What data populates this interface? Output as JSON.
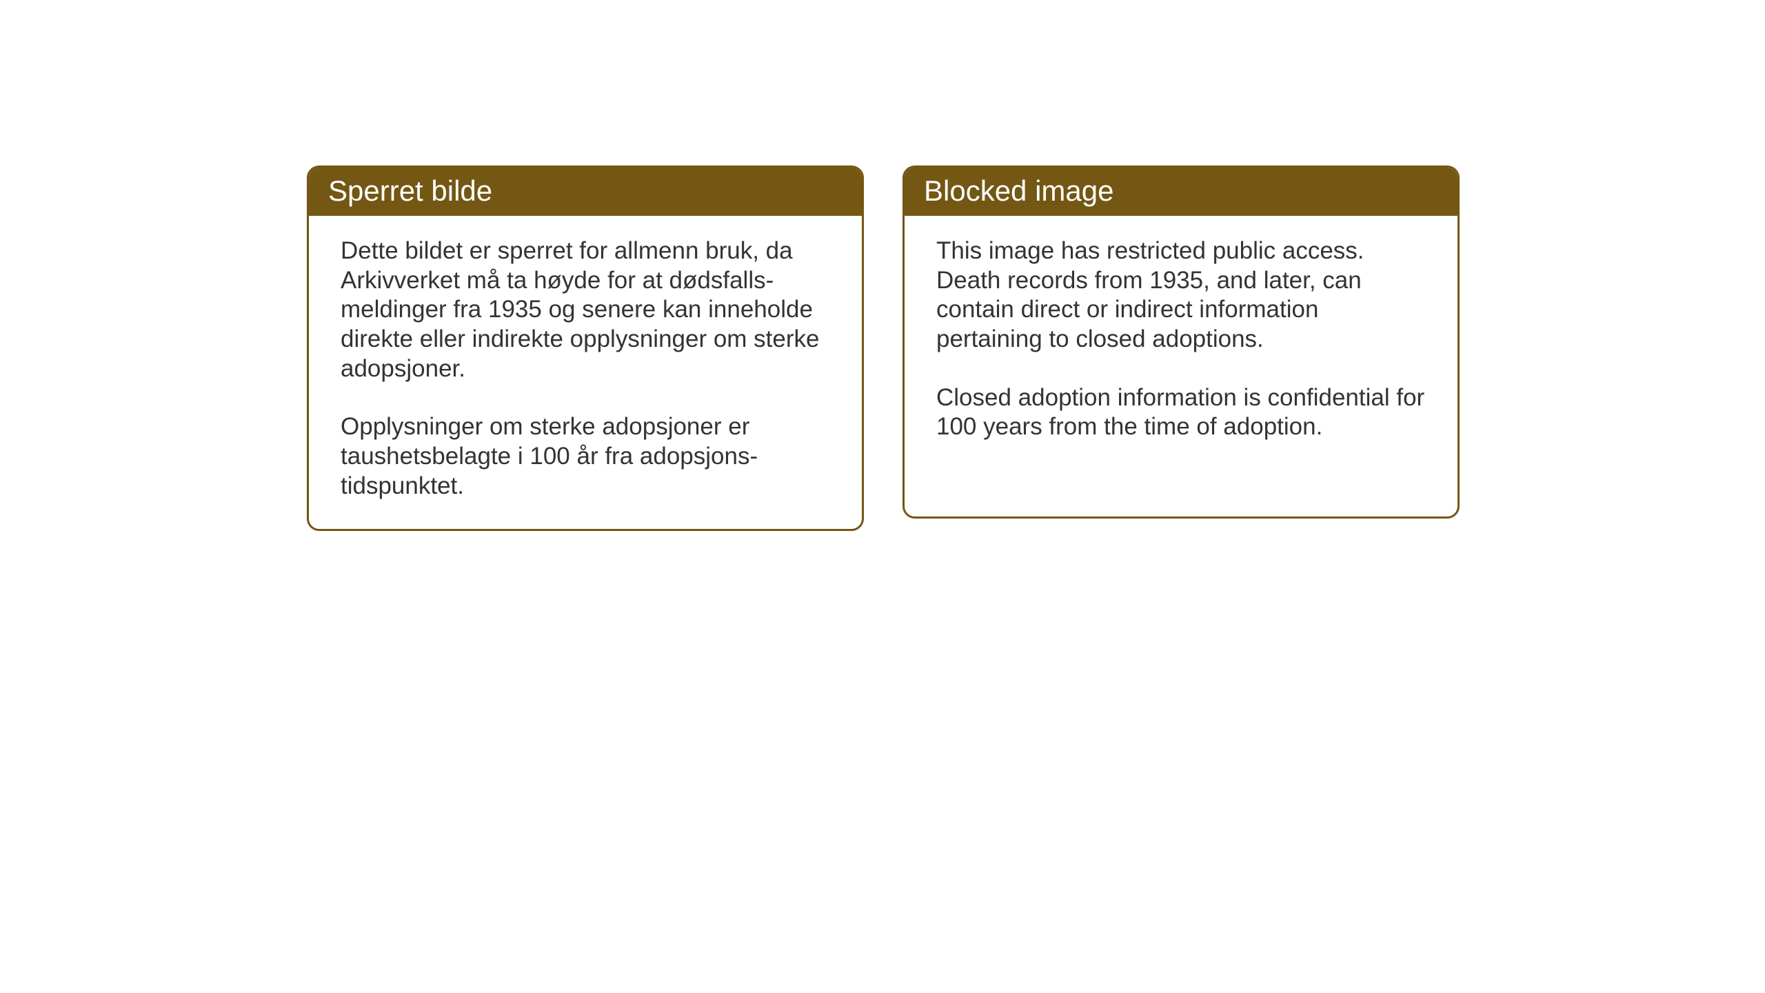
{
  "layout": {
    "background_color": "#ffffff",
    "header_bg_color": "#735713",
    "header_text_color": "#ffffff",
    "border_color": "#735713",
    "body_text_color": "#333333",
    "card_border_radius": 18,
    "card_border_width": 3,
    "header_fontsize": 42,
    "body_fontsize": 35
  },
  "cards": {
    "left": {
      "title": "Sperret bilde",
      "para1": "Dette bildet er sperret for allmenn bruk, da Arkivverket må ta høyde for at dødsfalls-meldinger fra 1935 og senere kan inneholde direkte eller indirekte opplysninger om sterke adopsjoner.",
      "para2": "Opplysninger om sterke adopsjoner er taushetsbelagte i 100 år fra adopsjons-tidspunktet."
    },
    "right": {
      "title": "Blocked image",
      "para1": "This image has restricted public access. Death records from 1935, and later, can contain direct or indirect information pertaining to closed adoptions.",
      "para2": "Closed adoption information is confidential for 100 years from the time of adoption."
    }
  }
}
